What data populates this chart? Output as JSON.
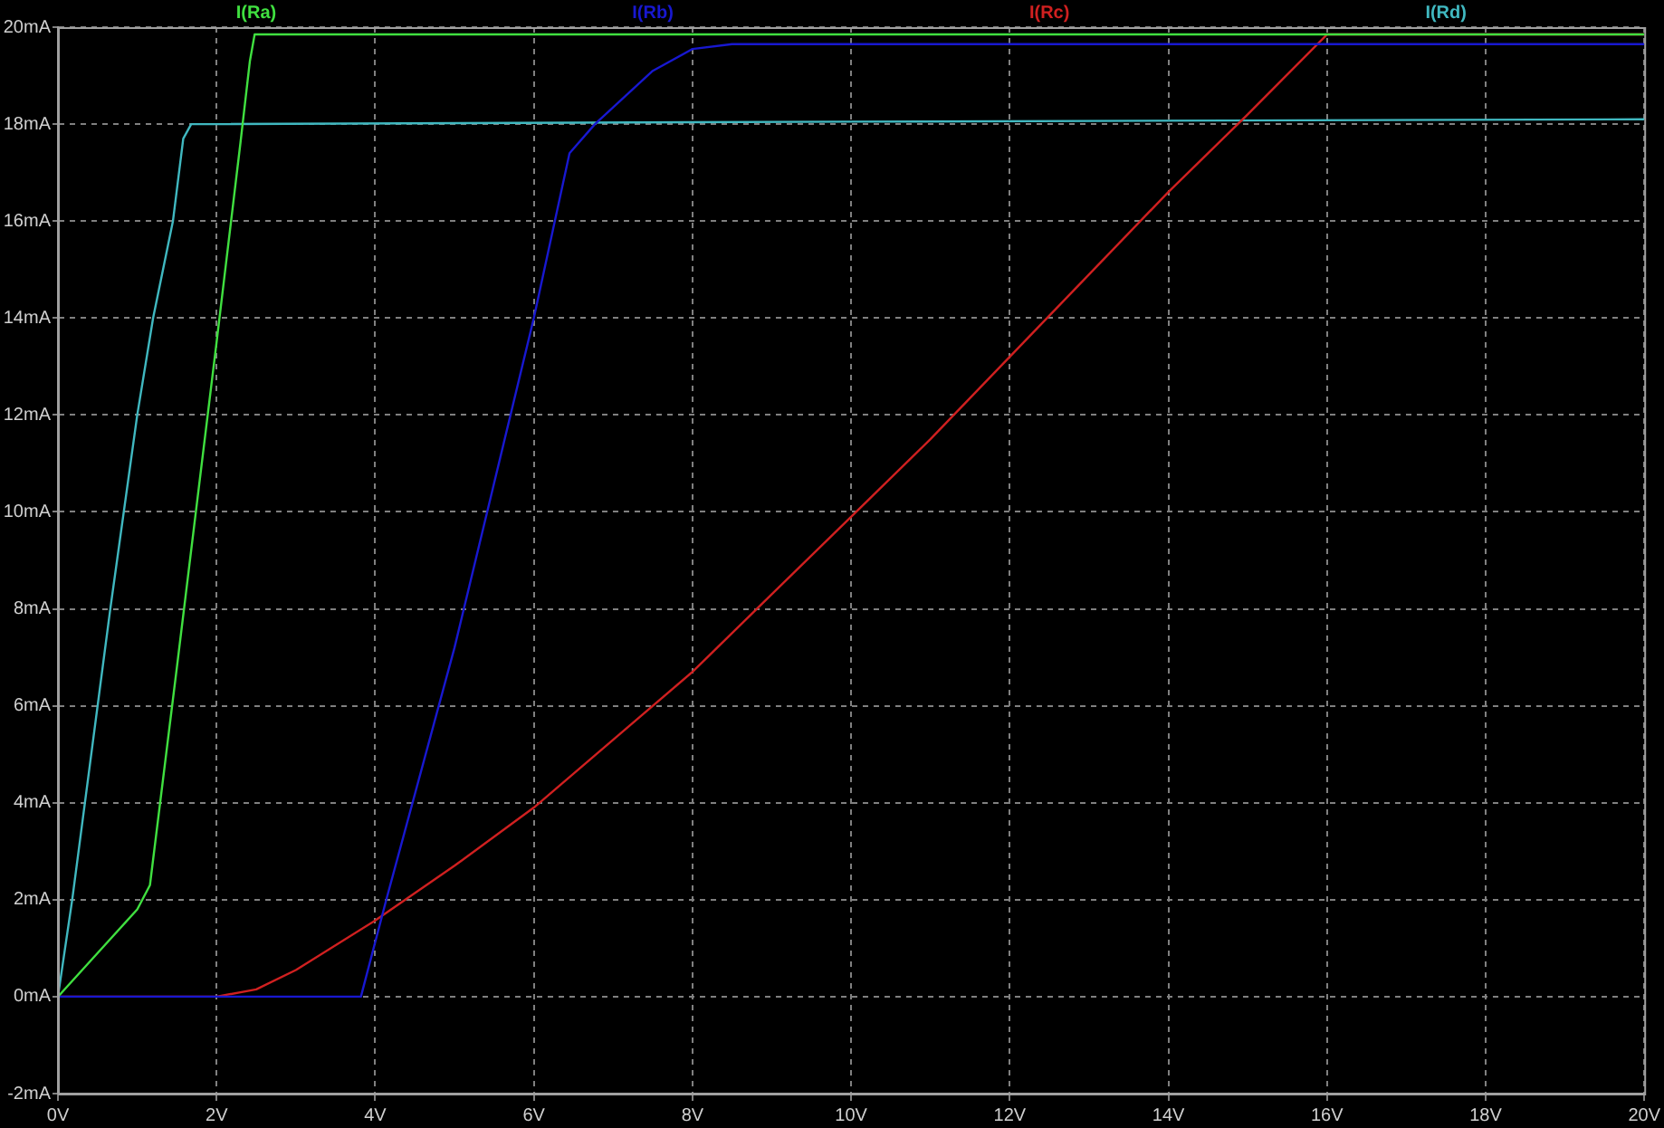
{
  "chart_data": {
    "type": "line",
    "marker": "none",
    "line_style": "solid",
    "grid": true,
    "legend": "top",
    "xlim": [
      0,
      20
    ],
    "ylim": [
      -2,
      20
    ],
    "xticks": [
      {
        "value": 0,
        "label": "0V"
      },
      {
        "value": 2,
        "label": "2V"
      },
      {
        "value": 4,
        "label": "4V"
      },
      {
        "value": 6,
        "label": "6V"
      },
      {
        "value": 8,
        "label": "8V"
      },
      {
        "value": 10,
        "label": "10V"
      },
      {
        "value": 12,
        "label": "12V"
      },
      {
        "value": 14,
        "label": "14V"
      },
      {
        "value": 16,
        "label": "16V"
      },
      {
        "value": 18,
        "label": "18V"
      },
      {
        "value": 20,
        "label": "20V"
      }
    ],
    "yticks": [
      {
        "value": -2,
        "label": "-2mA"
      },
      {
        "value": 0,
        "label": "0mA"
      },
      {
        "value": 2,
        "label": "2mA"
      },
      {
        "value": 4,
        "label": "4mA"
      },
      {
        "value": 6,
        "label": "6mA"
      },
      {
        "value": 8,
        "label": "8mA"
      },
      {
        "value": 10,
        "label": "10mA"
      },
      {
        "value": 12,
        "label": "12mA"
      },
      {
        "value": 14,
        "label": "14mA"
      },
      {
        "value": 16,
        "label": "16mA"
      },
      {
        "value": 18,
        "label": "18mA"
      },
      {
        "value": 20,
        "label": "20mA"
      }
    ],
    "series": [
      {
        "name": "I(Ra)",
        "color": "#40e040",
        "x": [
          0,
          0.5,
          1.0,
          1.16,
          1.5,
          2.0,
          2.3,
          2.42,
          2.48,
          20
        ],
        "values": [
          0,
          0.9,
          1.8,
          2.3,
          6.8,
          13.5,
          17.6,
          19.3,
          19.85,
          19.85
        ]
      },
      {
        "name": "I(Rb)",
        "color": "#1818d0",
        "x": [
          0,
          3.82,
          4.14,
          5.0,
          6.0,
          6.45,
          6.77,
          7.5,
          8.0,
          8.5,
          20
        ],
        "values": [
          0,
          0,
          2,
          7.2,
          14,
          17.4,
          18.0,
          19.1,
          19.55,
          19.65,
          19.65
        ]
      },
      {
        "name": "I(Rc)",
        "color": "#d02020",
        "x": [
          0,
          2,
          2.5,
          3,
          4,
          5,
          6,
          7,
          8,
          9,
          10,
          11,
          12,
          13,
          14,
          15,
          16,
          20
        ],
        "values": [
          0,
          0,
          0.15,
          0.55,
          1.57,
          2.7,
          3.9,
          5.3,
          6.7,
          8.3,
          9.9,
          11.5,
          13.2,
          14.9,
          16.6,
          18.2,
          19.85,
          19.85
        ]
      },
      {
        "name": "I(Rd)",
        "color": "#40b8c0",
        "x": [
          0,
          0.18,
          0.66,
          1.0,
          1.2,
          1.45,
          1.58,
          1.68,
          10,
          20
        ],
        "values": [
          0,
          2,
          8,
          12,
          14,
          16,
          17.7,
          18.0,
          18.05,
          18.1
        ]
      }
    ]
  }
}
